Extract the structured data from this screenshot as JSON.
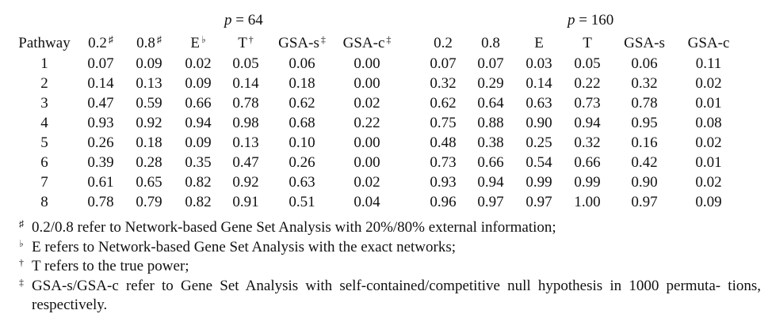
{
  "groups": [
    {
      "var": "p",
      "op": "=",
      "value": "64"
    },
    {
      "var": "p",
      "op": "=",
      "value": "160"
    }
  ],
  "table": {
    "headers": [
      {
        "label": "Pathway",
        "mark": ""
      },
      {
        "label": "0.2",
        "mark": "♯"
      },
      {
        "label": "0.8",
        "mark": "♯"
      },
      {
        "label": "E",
        "mark": "♭"
      },
      {
        "label": "T",
        "mark": "†"
      },
      {
        "label": "GSA-s",
        "mark": "‡"
      },
      {
        "label": "GSA-c",
        "mark": "‡"
      },
      {
        "label": "0.2",
        "mark": ""
      },
      {
        "label": "0.8",
        "mark": ""
      },
      {
        "label": "E",
        "mark": ""
      },
      {
        "label": "T",
        "mark": ""
      },
      {
        "label": "GSA-s",
        "mark": ""
      },
      {
        "label": "GSA-c",
        "mark": ""
      }
    ],
    "rows": [
      [
        "1",
        "0.07",
        "0.09",
        "0.02",
        "0.05",
        "0.06",
        "0.00",
        "0.07",
        "0.07",
        "0.03",
        "0.05",
        "0.06",
        "0.11"
      ],
      [
        "2",
        "0.14",
        "0.13",
        "0.09",
        "0.14",
        "0.18",
        "0.00",
        "0.32",
        "0.29",
        "0.14",
        "0.22",
        "0.32",
        "0.02"
      ],
      [
        "3",
        "0.47",
        "0.59",
        "0.66",
        "0.78",
        "0.62",
        "0.02",
        "0.62",
        "0.64",
        "0.63",
        "0.73",
        "0.78",
        "0.01"
      ],
      [
        "4",
        "0.93",
        "0.92",
        "0.94",
        "0.98",
        "0.68",
        "0.22",
        "0.75",
        "0.88",
        "0.90",
        "0.94",
        "0.95",
        "0.08"
      ],
      [
        "5",
        "0.26",
        "0.18",
        "0.09",
        "0.13",
        "0.10",
        "0.00",
        "0.48",
        "0.38",
        "0.25",
        "0.32",
        "0.16",
        "0.02"
      ],
      [
        "6",
        "0.39",
        "0.28",
        "0.35",
        "0.47",
        "0.26",
        "0.00",
        "0.73",
        "0.66",
        "0.54",
        "0.66",
        "0.42",
        "0.01"
      ],
      [
        "7",
        "0.61",
        "0.65",
        "0.82",
        "0.92",
        "0.63",
        "0.02",
        "0.93",
        "0.94",
        "0.99",
        "0.99",
        "0.90",
        "0.02"
      ],
      [
        "8",
        "0.78",
        "0.79",
        "0.82",
        "0.91",
        "0.51",
        "0.04",
        "0.96",
        "0.97",
        "0.97",
        "1.00",
        "0.97",
        "0.09"
      ]
    ]
  },
  "notes": [
    {
      "symbol": "♯",
      "text": "0.2/0.8 refer to Network-based Gene Set Analysis with 20%/80% external information;"
    },
    {
      "symbol": "♭",
      "text": "E refers to Network-based Gene Set Analysis with the exact networks;"
    },
    {
      "symbol": "†",
      "text": "T refers to the true power;"
    },
    {
      "symbol": "‡",
      "text": "GSA-s/GSA-c refer to Gene Set Analysis with self-contained/competitive null hypothesis in 1000 permuta- tions, respectively."
    }
  ]
}
